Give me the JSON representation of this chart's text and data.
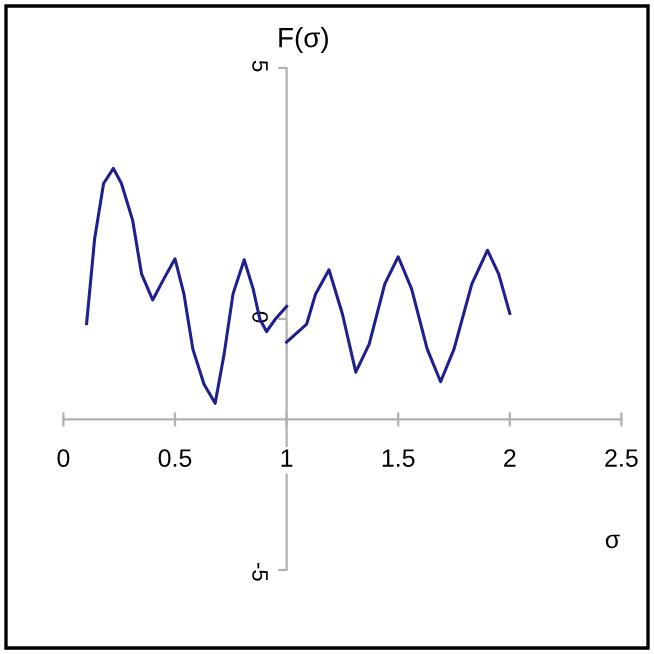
{
  "chart_data": {
    "type": "line",
    "xlabel": "σ",
    "ylabel": "F(σ)",
    "xlim": [
      0,
      2.5
    ],
    "xticks": [
      0,
      0.5,
      1,
      1.5,
      2,
      2.5
    ],
    "ylim": [
      -5,
      5
    ],
    "yticks": [
      -5,
      0,
      5
    ],
    "grid": false,
    "legend": false,
    "marker": "none",
    "line_style": "solid",
    "series": [
      {
        "color": "#1f1f8f",
        "x": [
          0.104,
          0.14,
          0.18,
          0.224,
          0.26,
          0.31,
          0.35,
          0.4,
          0.45,
          0.5,
          0.54,
          0.58,
          0.63,
          0.68,
          0.72,
          0.76,
          0.81,
          0.85,
          0.88,
          0.91,
          0.95,
          1.0
        ],
        "values": [
          -0.09,
          1.6,
          2.7,
          3.0,
          2.7,
          1.97,
          0.9,
          0.38,
          0.8,
          1.2,
          0.5,
          -0.6,
          -1.3,
          -1.68,
          -0.7,
          0.5,
          1.18,
          0.6,
          0.0,
          -0.25,
          0.0,
          0.25
        ]
      },
      {
        "color": "#1f1f8f",
        "x": [
          1.0,
          1.09,
          1.13,
          1.19,
          1.25,
          1.31,
          1.37,
          1.44,
          1.5,
          1.56,
          1.63,
          1.69,
          1.75,
          1.83,
          1.9,
          1.95,
          2.0
        ],
        "values": [
          -0.46,
          -0.1,
          0.5,
          0.98,
          0.1,
          -1.06,
          -0.5,
          0.7,
          1.24,
          0.6,
          -0.6,
          -1.25,
          -0.6,
          0.7,
          1.37,
          0.9,
          0.11
        ]
      }
    ]
  }
}
